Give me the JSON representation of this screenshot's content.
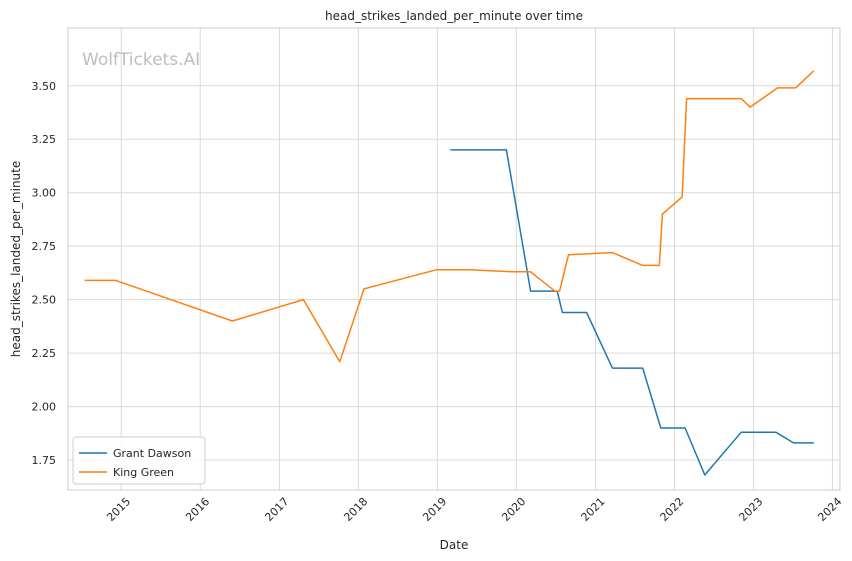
{
  "chart_data": {
    "type": "line",
    "title": "head_strikes_landed_per_minute over time",
    "xlabel": "Date",
    "ylabel": "head_strikes_landed_per_minute",
    "watermark": "WolfTickets.AI",
    "x_ticks": [
      "2015",
      "2016",
      "2017",
      "2018",
      "2019",
      "2020",
      "2021",
      "2022",
      "2023",
      "2024"
    ],
    "y_ticks": [
      "1.75",
      "2.00",
      "2.25",
      "2.50",
      "2.75",
      "3.00",
      "3.25",
      "3.50"
    ],
    "ylim": [
      1.61,
      3.77
    ],
    "xlim": [
      "2014-04-30",
      "2024-02-05"
    ],
    "grid": true,
    "legend_position": "lower-left",
    "series": [
      {
        "name": "Grant Dawson",
        "color": "#1f77b4",
        "points": [
          [
            "2019-03-02",
            3.2
          ],
          [
            "2019-11-16",
            3.2
          ],
          [
            "2020-03-07",
            2.54
          ],
          [
            "2020-07-08",
            2.54
          ],
          [
            "2020-08-01",
            2.44
          ],
          [
            "2020-11-21",
            2.44
          ],
          [
            "2021-03-20",
            2.18
          ],
          [
            "2021-08-07",
            2.18
          ],
          [
            "2021-10-30",
            1.9
          ],
          [
            "2022-02-19",
            1.9
          ],
          [
            "2022-05-21",
            1.68
          ],
          [
            "2022-11-05",
            1.88
          ],
          [
            "2023-04-15",
            1.88
          ],
          [
            "2023-07-05",
            1.83
          ],
          [
            "2023-10-07",
            1.83
          ]
        ]
      },
      {
        "name": "King Green",
        "color": "#ff7f0e",
        "points": [
          [
            "2014-07-16",
            2.59
          ],
          [
            "2014-12-06",
            2.59
          ],
          [
            "2016-05-29",
            2.4
          ],
          [
            "2017-04-22",
            2.5
          ],
          [
            "2017-10-07",
            2.21
          ],
          [
            "2018-01-27",
            2.55
          ],
          [
            "2018-12-29",
            2.64
          ],
          [
            "2019-06-01",
            2.64
          ],
          [
            "2019-12-14",
            2.63
          ],
          [
            "2020-03-07",
            2.63
          ],
          [
            "2020-06-27",
            2.54
          ],
          [
            "2020-07-19",
            2.54
          ],
          [
            "2020-08-29",
            2.71
          ],
          [
            "2021-03-20",
            2.72
          ],
          [
            "2021-08-07",
            2.66
          ],
          [
            "2021-10-23",
            2.66
          ],
          [
            "2021-11-06",
            2.9
          ],
          [
            "2022-02-05",
            2.98
          ],
          [
            "2022-02-26",
            3.44
          ],
          [
            "2022-11-05",
            3.44
          ],
          [
            "2022-12-17",
            3.4
          ],
          [
            "2023-04-22",
            3.49
          ],
          [
            "2023-07-15",
            3.49
          ],
          [
            "2023-10-07",
            3.57
          ]
        ]
      }
    ]
  }
}
